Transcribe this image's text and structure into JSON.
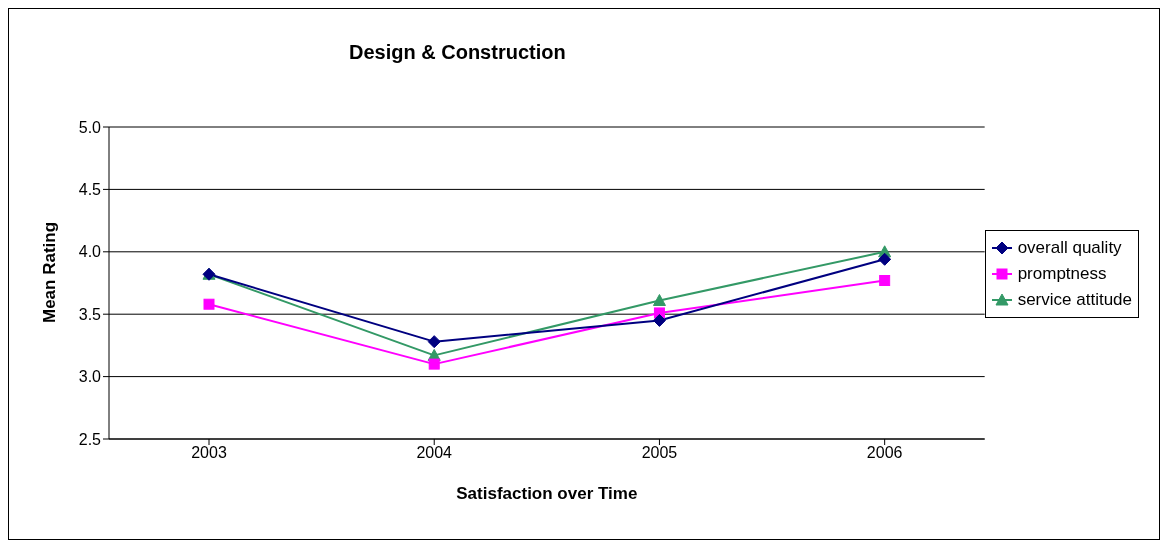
{
  "chart_data": {
    "type": "line",
    "title": "Design & Construction",
    "xlabel": "Satisfaction over Time",
    "ylabel": "Mean Rating",
    "categories": [
      "2003",
      "2004",
      "2005",
      "2006"
    ],
    "series": [
      {
        "name": "overall quality",
        "color": "#000080",
        "marker": "diamond",
        "values": [
          3.82,
          3.28,
          3.45,
          3.94
        ]
      },
      {
        "name": "promptness",
        "color": "#ff00ff",
        "marker": "square",
        "values": [
          3.58,
          3.1,
          3.51,
          3.77
        ]
      },
      {
        "name": "service attitude",
        "color": "#339966",
        "marker": "triangle",
        "values": [
          3.82,
          3.17,
          3.61,
          4.0
        ]
      }
    ],
    "ylim": [
      2.5,
      5.0
    ],
    "yticks": [
      {
        "value": 2.5,
        "label": "2.5"
      },
      {
        "value": 3.0,
        "label": "3.0"
      },
      {
        "value": 3.5,
        "label": "3.5"
      },
      {
        "value": 4.0,
        "label": "4.0"
      },
      {
        "value": 4.5,
        "label": "4.5"
      },
      {
        "value": 5.0,
        "label": "5.0"
      }
    ],
    "grid": "y",
    "legend": "right"
  }
}
